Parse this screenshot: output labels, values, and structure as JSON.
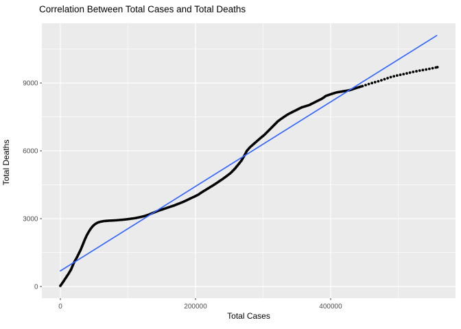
{
  "chart_data": {
    "type": "scatter",
    "title": "Correlation Between Total Cases and Total Deaths",
    "xlabel": "Total Cases",
    "ylabel": "Total Deaths",
    "x_ticks": [
      0,
      200000,
      400000
    ],
    "x_tick_labels": [
      "0",
      "200000",
      "400000"
    ],
    "y_ticks": [
      0,
      3000,
      6000,
      9000
    ],
    "y_tick_labels": [
      "0",
      "3000",
      "6000",
      "9000"
    ],
    "xlim": [
      -27400,
      584800
    ],
    "ylim": [
      -515,
      11640
    ],
    "grid": "major and minor, white on grey panel",
    "legend": "none",
    "colors": {
      "points": "#000000",
      "trend_line": "#3366FF",
      "panel_background": "#EBEBEB",
      "gridline": "#FFFFFF",
      "tick_text": "#4D4D4D",
      "tick_mark": "#333333",
      "title_text": "#000000",
      "outer_background": "#FFFFFF"
    },
    "trend_line": {
      "type": "linear",
      "x": [
        0,
        557000
      ],
      "y": [
        690,
        11100
      ]
    },
    "points": [
      [
        0,
        30
      ],
      [
        4000,
        200
      ],
      [
        8000,
        380
      ],
      [
        12000,
        560
      ],
      [
        16000,
        760
      ],
      [
        20000,
        1050
      ],
      [
        24000,
        1260
      ],
      [
        27000,
        1440
      ],
      [
        30000,
        1620
      ],
      [
        33000,
        1840
      ],
      [
        36000,
        2060
      ],
      [
        39000,
        2260
      ],
      [
        42000,
        2420
      ],
      [
        45000,
        2560
      ],
      [
        48000,
        2670
      ],
      [
        51000,
        2750
      ],
      [
        54000,
        2810
      ],
      [
        57000,
        2845
      ],
      [
        60000,
        2870
      ],
      [
        64000,
        2890
      ],
      [
        69000,
        2905
      ],
      [
        75000,
        2915
      ],
      [
        81000,
        2925
      ],
      [
        87000,
        2940
      ],
      [
        93000,
        2955
      ],
      [
        99000,
        2975
      ],
      [
        105000,
        3000
      ],
      [
        110000,
        3020
      ],
      [
        115000,
        3050
      ],
      [
        120000,
        3080
      ],
      [
        125000,
        3120
      ],
      [
        130000,
        3170
      ],
      [
        135000,
        3230
      ],
      [
        140000,
        3290
      ],
      [
        145000,
        3350
      ],
      [
        150000,
        3400
      ],
      [
        156000,
        3460
      ],
      [
        162000,
        3520
      ],
      [
        168000,
        3580
      ],
      [
        174000,
        3650
      ],
      [
        180000,
        3720
      ],
      [
        186000,
        3800
      ],
      [
        192000,
        3890
      ],
      [
        198000,
        3970
      ],
      [
        204000,
        4060
      ],
      [
        210000,
        4180
      ],
      [
        216000,
        4290
      ],
      [
        222000,
        4400
      ],
      [
        228000,
        4510
      ],
      [
        234000,
        4630
      ],
      [
        240000,
        4750
      ],
      [
        246000,
        4880
      ],
      [
        252000,
        5020
      ],
      [
        258000,
        5200
      ],
      [
        263000,
        5380
      ],
      [
        268000,
        5570
      ],
      [
        272000,
        5770
      ],
      [
        276000,
        6000
      ],
      [
        281000,
        6170
      ],
      [
        286000,
        6300
      ],
      [
        296000,
        6560
      ],
      [
        302000,
        6710
      ],
      [
        307000,
        6860
      ],
      [
        312000,
        7010
      ],
      [
        317000,
        7160
      ],
      [
        322000,
        7310
      ],
      [
        327000,
        7420
      ],
      [
        332000,
        7520
      ],
      [
        337000,
        7620
      ],
      [
        347000,
        7770
      ],
      [
        357000,
        7920
      ],
      [
        368000,
        8020
      ],
      [
        378000,
        8170
      ],
      [
        388000,
        8320
      ],
      [
        393000,
        8430
      ],
      [
        398000,
        8480
      ],
      [
        408000,
        8580
      ],
      [
        418000,
        8630
      ],
      [
        428000,
        8680
      ],
      [
        438000,
        8780
      ],
      [
        449000,
        8880
      ],
      [
        459000,
        8980
      ],
      [
        471000,
        9080
      ],
      [
        481000,
        9180
      ],
      [
        491000,
        9280
      ],
      [
        501000,
        9350
      ],
      [
        512000,
        9420
      ],
      [
        522000,
        9490
      ],
      [
        532000,
        9550
      ],
      [
        542000,
        9600
      ],
      [
        552000,
        9660
      ],
      [
        558000,
        9700
      ]
    ]
  }
}
